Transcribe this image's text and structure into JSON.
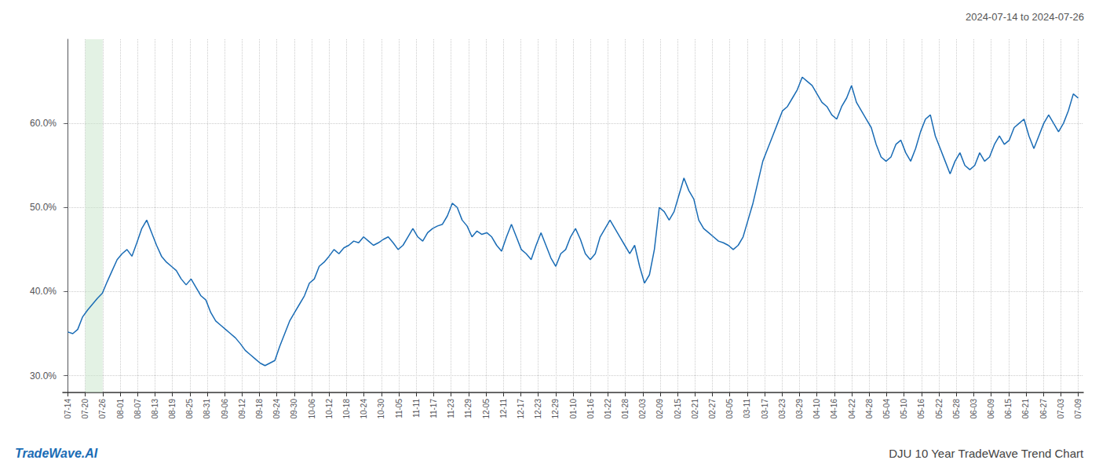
{
  "chart_data": {
    "type": "line",
    "title": "DJU 10 Year TradeWave Trend Chart",
    "subtitle": "2024-07-14 to 2024-07-26",
    "annotations": [
      "TradeWave.AI"
    ],
    "color": "#1a6cb5",
    "grid": true,
    "shaded_region": {
      "from": "07-20",
      "to": "07-26",
      "color": "#c8e6c9"
    },
    "xlim": [
      -1.025,
      206.025
    ],
    "xticks": [
      {
        "value": 0,
        "label": "07-14"
      },
      {
        "value": 3.5345,
        "label": "07-20"
      },
      {
        "value": 7.069,
        "label": "07-26"
      },
      {
        "value": 10.6034,
        "label": "08-01"
      },
      {
        "value": 14.1379,
        "label": "08-07"
      },
      {
        "value": 17.6724,
        "label": "08-13"
      },
      {
        "value": 21.2069,
        "label": "08-19"
      },
      {
        "value": 24.7414,
        "label": "08-25"
      },
      {
        "value": 28.2759,
        "label": "08-31"
      },
      {
        "value": 31.8103,
        "label": "09-06"
      },
      {
        "value": 35.3448,
        "label": "09-12"
      },
      {
        "value": 38.8793,
        "label": "09-18"
      },
      {
        "value": 42.4138,
        "label": "09-24"
      },
      {
        "value": 45.9483,
        "label": "09-30"
      },
      {
        "value": 49.4828,
        "label": "10-06"
      },
      {
        "value": 53.0172,
        "label": "10-12"
      },
      {
        "value": 56.5517,
        "label": "10-18"
      },
      {
        "value": 60.0862,
        "label": "10-24"
      },
      {
        "value": 63.6207,
        "label": "10-30"
      },
      {
        "value": 67.1552,
        "label": "11-05"
      },
      {
        "value": 70.6897,
        "label": "11-11"
      },
      {
        "value": 74.2241,
        "label": "11-17"
      },
      {
        "value": 77.7586,
        "label": "11-23"
      },
      {
        "value": 81.2931,
        "label": "11-29"
      },
      {
        "value": 84.8276,
        "label": "12-05"
      },
      {
        "value": 88.3621,
        "label": "12-11"
      },
      {
        "value": 91.8966,
        "label": "12-17"
      },
      {
        "value": 95.431,
        "label": "12-23"
      },
      {
        "value": 98.9655,
        "label": "12-29"
      },
      {
        "value": 102.5,
        "label": "01-10"
      },
      {
        "value": 106.0345,
        "label": "01-16"
      },
      {
        "value": 109.569,
        "label": "01-22"
      },
      {
        "value": 113.1034,
        "label": "01-28"
      },
      {
        "value": 116.6379,
        "label": "02-03"
      },
      {
        "value": 120.1724,
        "label": "02-09"
      },
      {
        "value": 123.7069,
        "label": "02-15"
      },
      {
        "value": 127.2414,
        "label": "02-21"
      },
      {
        "value": 130.7759,
        "label": "02-27"
      },
      {
        "value": 134.3103,
        "label": "03-05"
      },
      {
        "value": 137.8448,
        "label": "03-11"
      },
      {
        "value": 141.3793,
        "label": "03-17"
      },
      {
        "value": 144.9138,
        "label": "03-23"
      },
      {
        "value": 148.4483,
        "label": "03-29"
      },
      {
        "value": 151.9828,
        "label": "04-10"
      },
      {
        "value": 155.5172,
        "label": "04-16"
      },
      {
        "value": 159.0517,
        "label": "04-22"
      },
      {
        "value": 162.5862,
        "label": "04-28"
      },
      {
        "value": 166.1207,
        "label": "05-04"
      },
      {
        "value": 169.6552,
        "label": "05-10"
      },
      {
        "value": 173.1897,
        "label": "05-16"
      },
      {
        "value": 176.7241,
        "label": "05-22"
      },
      {
        "value": 180.2586,
        "label": "05-28"
      },
      {
        "value": 183.7931,
        "label": "06-03"
      },
      {
        "value": 187.3276,
        "label": "06-09"
      },
      {
        "value": 190.8621,
        "label": "06-15"
      },
      {
        "value": 194.3966,
        "label": "06-21"
      },
      {
        "value": 197.931,
        "label": "06-27"
      },
      {
        "value": 201.4655,
        "label": "07-03"
      },
      {
        "value": 205,
        "label": "07-09"
      }
    ],
    "ylim": [
      28.0,
      70.0
    ],
    "yticks": [
      {
        "value": 30.0,
        "label": "30.0%"
      },
      {
        "value": 40.0,
        "label": "40.0%"
      },
      {
        "value": 50.0,
        "label": "50.0%"
      },
      {
        "value": 60.0,
        "label": "60.0%"
      }
    ],
    "values": [
      35.2,
      35.0,
      35.5,
      37.0,
      37.8,
      38.5,
      39.2,
      39.8,
      41.2,
      42.5,
      43.8,
      44.5,
      45.0,
      44.2,
      45.8,
      47.5,
      48.5,
      47.0,
      45.5,
      44.2,
      43.5,
      43.0,
      42.5,
      41.5,
      40.8,
      41.5,
      40.5,
      39.5,
      39.0,
      37.5,
      36.5,
      36.0,
      35.5,
      35.0,
      34.5,
      33.8,
      33.0,
      32.5,
      32.0,
      31.5,
      31.2,
      31.5,
      31.8,
      33.5,
      35.0,
      36.5,
      37.5,
      38.5,
      39.5,
      41.0,
      41.5,
      43.0,
      43.5,
      44.2,
      45.0,
      44.5,
      45.2,
      45.5,
      46.0,
      45.8,
      46.5,
      46.0,
      45.5,
      45.8,
      46.2,
      46.5,
      45.8,
      45.0,
      45.5,
      46.5,
      47.5,
      46.5,
      46.0,
      47.0,
      47.5,
      47.8,
      48.0,
      49.0,
      50.5,
      50.0,
      48.5,
      47.8,
      46.5,
      47.2,
      46.8,
      47.0,
      46.5,
      45.5,
      44.8,
      46.5,
      48.0,
      46.5,
      45.0,
      44.5,
      43.8,
      45.5,
      47.0,
      45.5,
      44.0,
      43.0,
      44.5,
      45.0,
      46.5,
      47.5,
      46.2,
      44.5,
      43.8,
      44.5,
      46.5,
      47.5,
      48.5,
      47.5,
      46.5,
      45.5,
      44.5,
      45.5,
      43.0,
      41.0,
      42.0,
      45.0,
      50.0,
      49.5,
      48.5,
      49.5,
      51.5,
      53.5,
      52.0,
      51.0,
      48.5,
      47.5,
      47.0,
      46.5,
      46.0,
      45.8,
      45.5,
      45.0,
      45.5,
      46.5,
      48.5,
      50.5,
      53.0,
      55.5,
      57.0,
      58.5,
      60.0,
      61.5,
      62.0,
      63.0,
      64.0,
      65.5,
      65.0,
      64.5,
      63.5,
      62.5,
      62.0,
      61.0,
      60.5,
      62.0,
      63.0,
      64.5,
      62.5,
      61.5,
      60.5,
      59.5,
      57.5,
      56.0,
      55.5,
      56.0,
      57.5,
      58.0,
      56.5,
      55.5,
      57.0,
      59.0,
      60.5,
      61.0,
      58.5,
      57.0,
      55.5,
      54.0,
      55.5,
      56.5,
      55.0,
      54.5,
      55.0,
      56.5,
      55.5,
      56.0,
      57.5,
      58.5,
      57.5,
      58.0,
      59.5,
      60.0,
      60.5,
      58.5,
      57.0,
      58.5,
      60.0,
      61.0,
      60.0,
      59.0,
      60.0,
      61.5,
      63.5,
      63.0
    ]
  }
}
